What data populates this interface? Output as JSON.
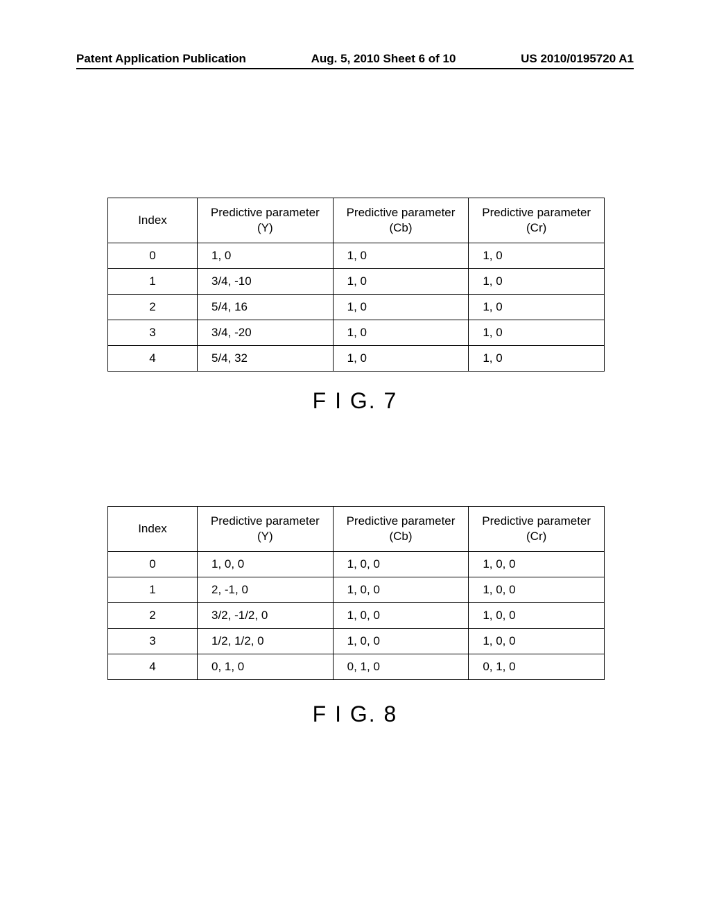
{
  "header": {
    "left": "Patent Application Publication",
    "center": "Aug. 5, 2010  Sheet 6 of 10",
    "right": "US 2010/0195720 A1"
  },
  "table7": {
    "headers": {
      "index": "Index",
      "y": "Predictive parameter (Y)",
      "cb": "Predictive parameter (Cb)",
      "cr": "Predictive parameter (Cr)"
    },
    "rows": [
      {
        "index": "0",
        "y": "1, 0",
        "cb": "1, 0",
        "cr": "1, 0"
      },
      {
        "index": "1",
        "y": "3/4, -10",
        "cb": "1, 0",
        "cr": "1, 0"
      },
      {
        "index": "2",
        "y": "5/4, 16",
        "cb": "1, 0",
        "cr": "1, 0"
      },
      {
        "index": "3",
        "y": "3/4, -20",
        "cb": "1, 0",
        "cr": "1, 0"
      },
      {
        "index": "4",
        "y": "5/4, 32",
        "cb": "1, 0",
        "cr": "1, 0"
      }
    ],
    "label": "F I G. 7"
  },
  "table8": {
    "headers": {
      "index": "Index",
      "y": "Predictive parameter (Y)",
      "cb": "Predictive parameter (Cb)",
      "cr": "Predictive parameter (Cr)"
    },
    "rows": [
      {
        "index": "0",
        "y": "1, 0, 0",
        "cb": "1, 0, 0",
        "cr": "1, 0, 0"
      },
      {
        "index": "1",
        "y": "2, -1, 0",
        "cb": "1, 0, 0",
        "cr": "1, 0, 0"
      },
      {
        "index": "2",
        "y": "3/2, -1/2, 0",
        "cb": "1, 0, 0",
        "cr": "1, 0, 0"
      },
      {
        "index": "3",
        "y": "1/2, 1/2, 0",
        "cb": "1, 0, 0",
        "cr": "1, 0, 0"
      },
      {
        "index": "4",
        "y": "0, 1, 0",
        "cb": "0, 1, 0",
        "cr": "0, 1, 0"
      }
    ],
    "label": "F I G. 8"
  }
}
